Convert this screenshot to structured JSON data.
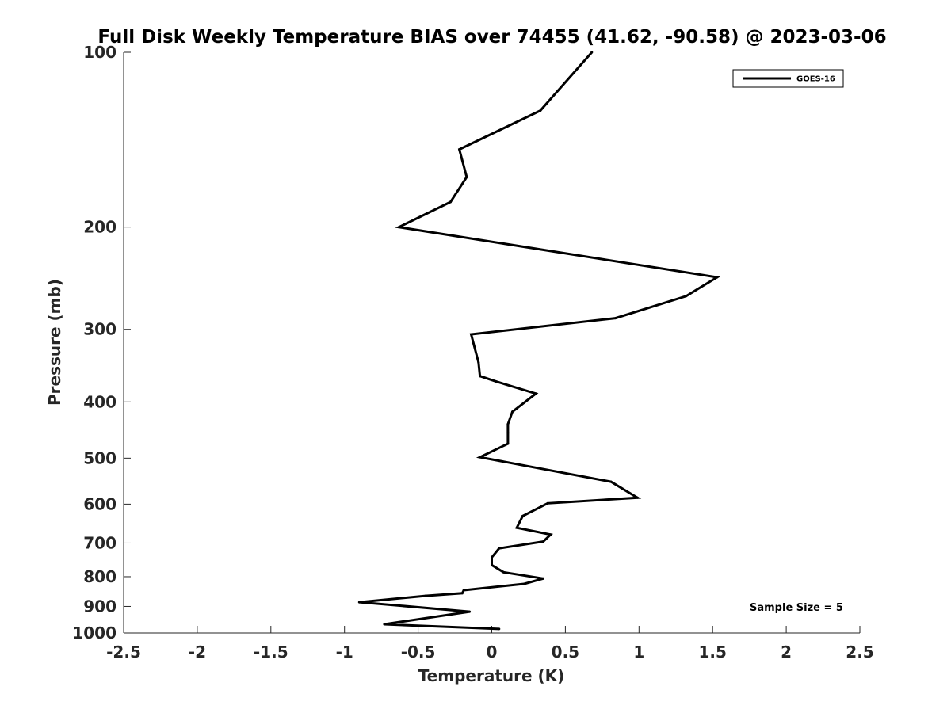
{
  "chart_data": {
    "type": "line",
    "title": "Full Disk Weekly Temperature BIAS over 74455 (41.62, -90.58) @ 2023-03-06",
    "xlabel": "Temperature (K)",
    "ylabel": "Pressure (mb)",
    "xlim": [
      -2.5,
      2.5
    ],
    "ylim": [
      100,
      1000
    ],
    "y_scale": "log",
    "y_reversed": true,
    "x_ticks": [
      "-2.5",
      "-2",
      "-1.5",
      "-1",
      "-0.5",
      "0",
      "0.5",
      "1",
      "1.5",
      "2",
      "2.5"
    ],
    "y_ticks": [
      "100",
      "200",
      "300",
      "400",
      "500",
      "600",
      "700",
      "800",
      "900",
      "1000"
    ],
    "grid": false,
    "legend_position": "top-right",
    "annotation": "Sample Size = 5",
    "series": [
      {
        "name": "GOES-16",
        "color": "#000000",
        "x": [
          0.68,
          0.33,
          -0.22,
          -0.17,
          -0.28,
          -0.63,
          1.53,
          1.32,
          0.84,
          -0.14,
          -0.09,
          -0.08,
          0.03,
          0.3,
          0.14,
          0.11,
          0.11,
          0.11,
          -0.08,
          0.81,
          0.99,
          0.38,
          0.21,
          0.17,
          0.4,
          0.35,
          0.05,
          0.0,
          0.0,
          0.08,
          0.35,
          0.22,
          -0.19,
          -0.2,
          -0.45,
          -0.9,
          -0.15,
          -0.73,
          0.05
        ],
        "y": [
          100,
          126,
          147,
          164,
          181,
          200,
          244,
          263,
          287,
          306,
          342,
          361,
          369,
          387,
          416,
          437,
          452,
          472,
          498,
          549,
          585,
          598,
          629,
          659,
          677,
          696,
          715,
          741,
          764,
          786,
          806,
          823,
          844,
          854,
          863,
          885,
          919,
          966,
          984
        ]
      }
    ]
  }
}
